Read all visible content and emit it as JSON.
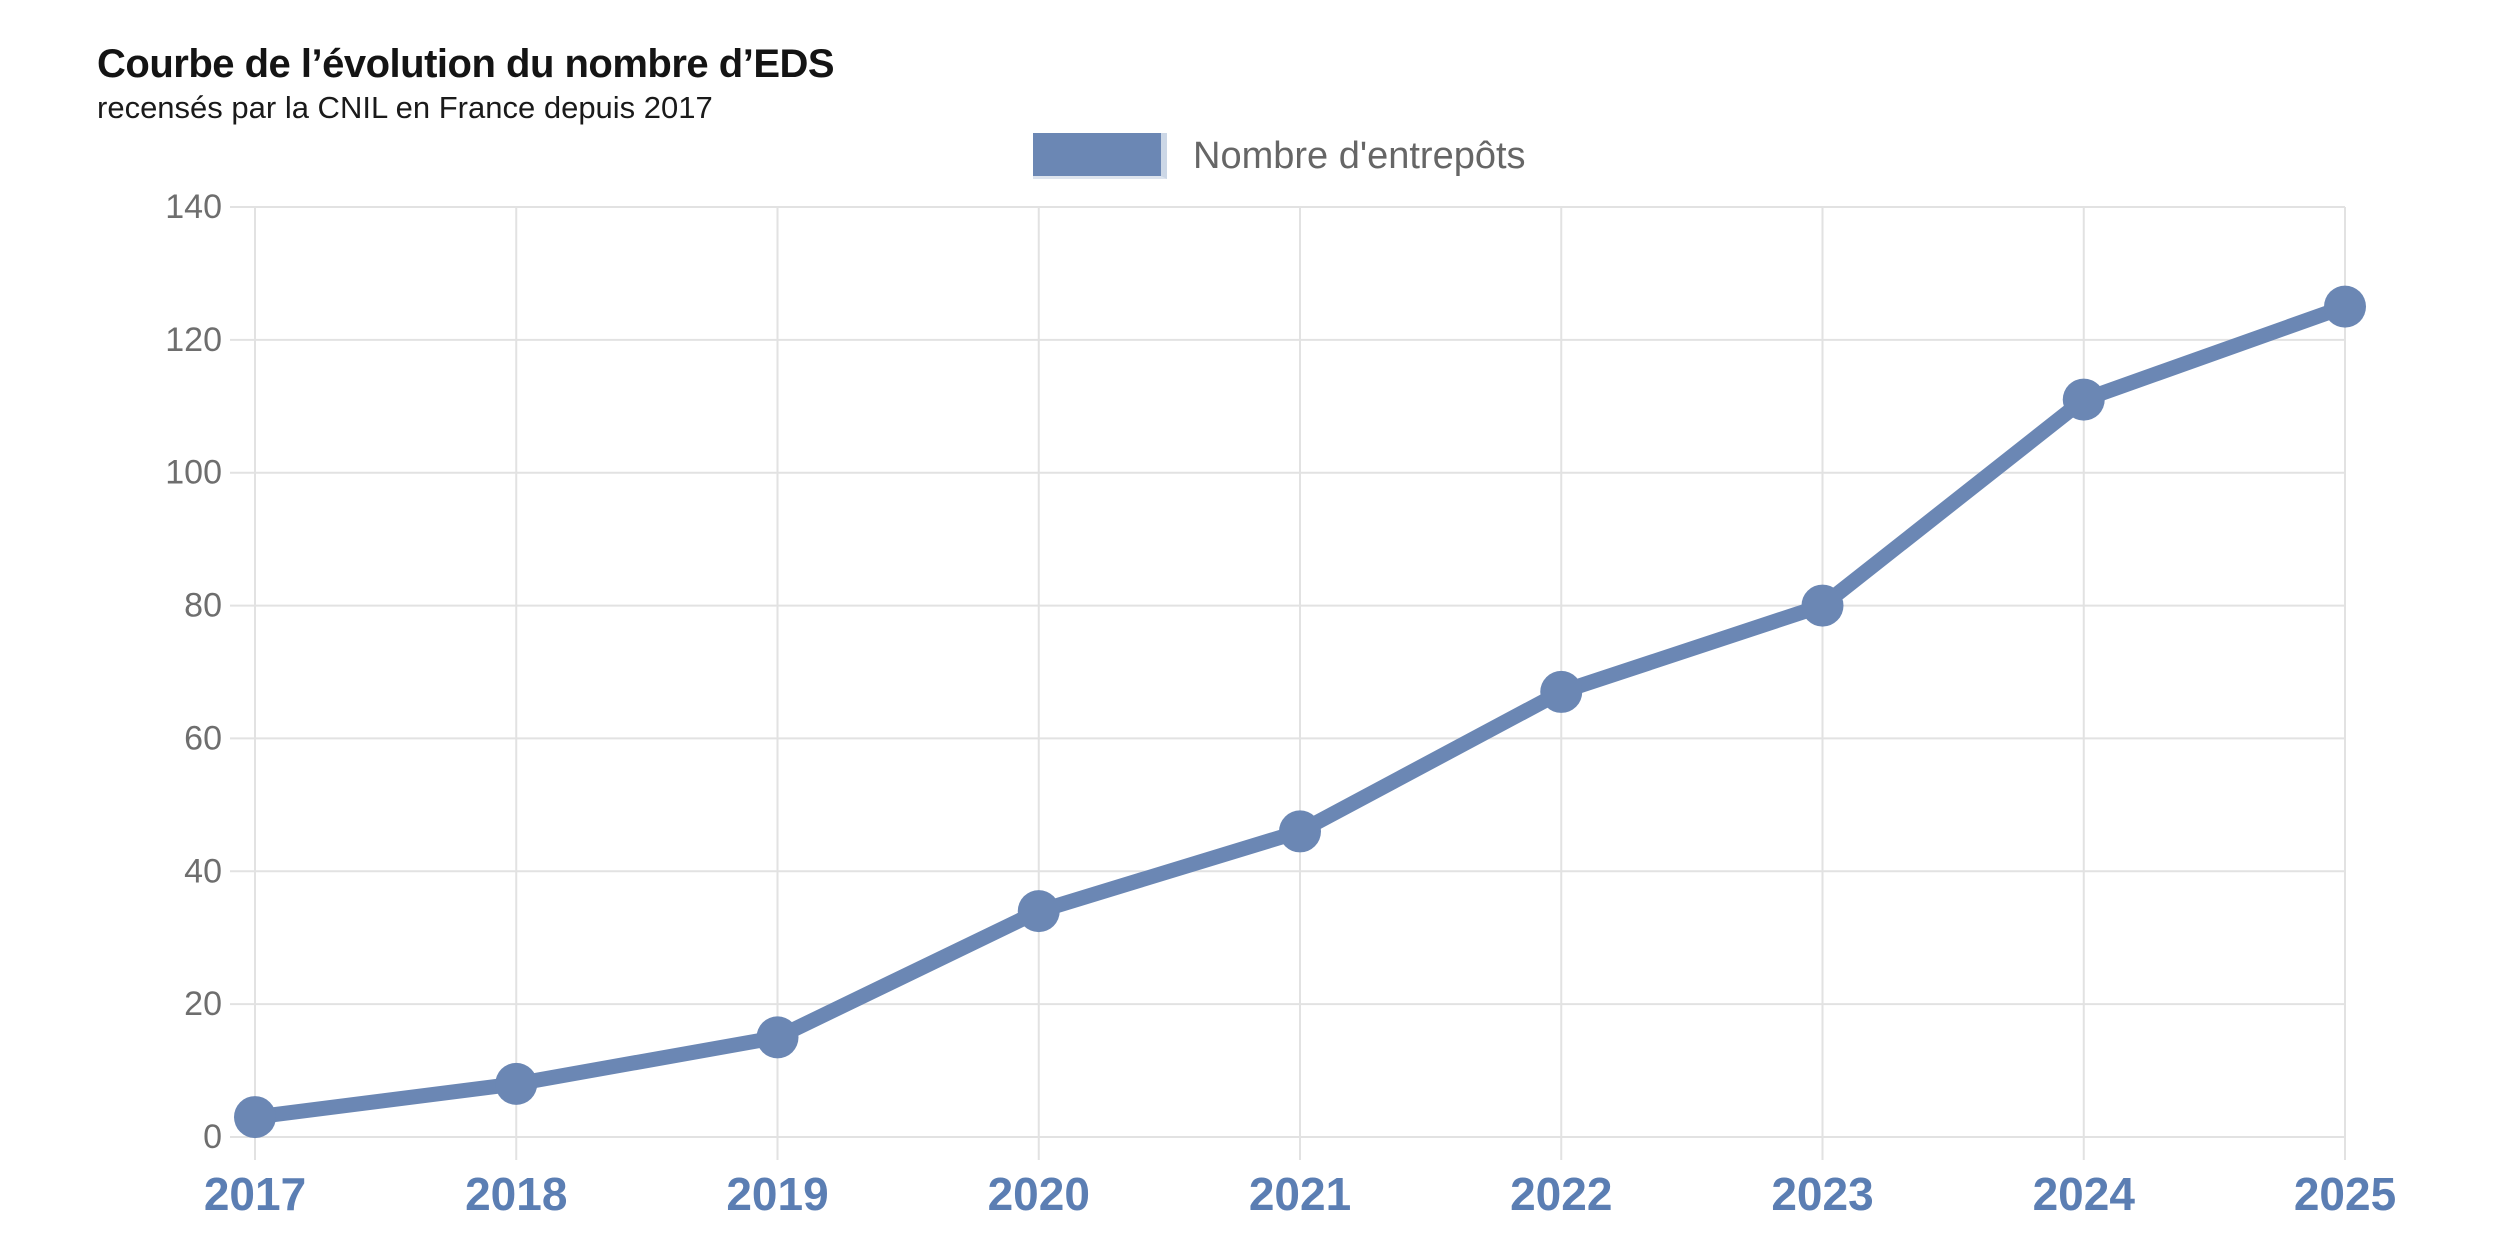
{
  "chart_data": {
    "type": "line",
    "title": "Courbe de l’évolution du nombre d’EDS",
    "subtitle": "recensés par la CNIL en France depuis 2017",
    "x": [
      "2017",
      "2018",
      "2019",
      "2020",
      "2021",
      "2022",
      "2023",
      "2024",
      "2025"
    ],
    "series": [
      {
        "name": "Nombre d'entrepôts",
        "values": [
          3,
          8,
          15,
          34,
          46,
          67,
          80,
          111,
          125
        ]
      }
    ],
    "xlabel": "",
    "ylabel": "",
    "ylim": [
      0,
      140
    ],
    "ytick_step": 20,
    "yticks": [
      0,
      20,
      40,
      60,
      80,
      100,
      120,
      140
    ],
    "grid": true,
    "legend_position": "top-center",
    "colors": {
      "line": "#6b87b4",
      "point": "#6b87b4",
      "grid": "#e2e2e2",
      "ytick_label": "#6e6e6e",
      "xtick_label": "#5b7eb3",
      "legend_text": "#666666"
    }
  }
}
